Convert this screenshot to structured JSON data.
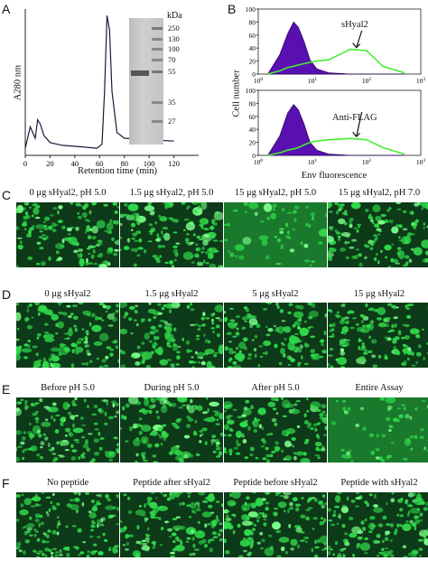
{
  "panels": {
    "A": "A",
    "B": "B",
    "C": "C",
    "D": "D",
    "E": "E",
    "F": "F"
  },
  "panel_a": {
    "ylabel": "A280 nm",
    "xlabel": "Retention time (min)",
    "xticks": [
      "0",
      "20",
      "40",
      "60",
      "80",
      "100",
      "120"
    ],
    "gel_unit": "kDa",
    "gel_markers": [
      "250",
      "130",
      "100",
      "70",
      "55",
      "35",
      "27"
    ]
  },
  "panel_b": {
    "ylabel": "Cell number",
    "xlabel": "Env fluorescence",
    "top": {
      "label": "sHyal2",
      "yticks": [
        "0",
        "20",
        "40",
        "60",
        "80",
        "100"
      ]
    },
    "bottom": {
      "label": "Anti-FLAG",
      "yticks": [
        "0",
        "20",
        "40",
        "60",
        "80",
        "100"
      ]
    },
    "xticks_exp": [
      "0",
      "1",
      "2",
      "3"
    ],
    "xtick_base": "10",
    "colors": {
      "filled": "#5a10b0",
      "line": "#44ee33"
    }
  },
  "row_c": [
    "0 μg sHyal2, pH 5.0",
    "1.5 μg sHyal2, pH 5.0",
    "15 μg sHyal2, pH 5.0",
    "15 μg sHyal2, pH 7.0"
  ],
  "row_d": [
    "0 μg sHyal2",
    "1.5 μg sHyal2",
    "5 μg sHyal2",
    "15 μg sHyal2"
  ],
  "row_e": [
    "Before pH 5.0",
    "During pH 5.0",
    "After pH 5.0",
    "Entire Assay"
  ],
  "row_f": [
    "No peptide",
    "Peptide after sHyal2",
    "Peptide before sHyal2",
    "Peptide with sHyal2"
  ],
  "micro_colors": {
    "bg": "#0d3a18",
    "cell": "#2fd94a",
    "bright": "#7dff8c"
  },
  "chart_data": [
    {
      "type": "line",
      "title": "",
      "xlabel": "Retention time (min)",
      "ylabel": "A280 nm",
      "xlim": [
        0,
        140
      ],
      "x": [
        0,
        4,
        8,
        10,
        12,
        15,
        20,
        30,
        45,
        58,
        62,
        64,
        66,
        68,
        70,
        74,
        80,
        100,
        120
      ],
      "series": [
        {
          "values": [
            0.05,
            0.2,
            0.12,
            0.25,
            0.22,
            0.14,
            0.09,
            0.07,
            0.06,
            0.05,
            0.08,
            0.45,
            0.98,
            0.88,
            0.45,
            0.16,
            0.12,
            0.11,
            0.1
          ]
        }
      ]
    },
    {
      "type": "area",
      "title": "",
      "xlabel": "Env fluorescence",
      "ylabel": "Cell number",
      "log_x": true,
      "xlim": [
        1,
        1000
      ],
      "ylim": [
        0,
        100
      ],
      "series": [
        {
          "x": [
            1.5,
            2.5,
            3.5,
            4.5,
            5.5,
            7,
            9,
            12,
            20,
            50,
            100,
            200,
            500
          ],
          "values": [
            0,
            30,
            62,
            80,
            72,
            50,
            22,
            8,
            2,
            0,
            0,
            0,
            0
          ]
        },
        {
          "name": "sHyal2",
          "x": [
            1.5,
            2.5,
            3.5,
            4.5,
            5.5,
            7,
            9,
            12,
            20,
            50,
            100,
            200,
            500
          ],
          "values": [
            0,
            5,
            10,
            12,
            14,
            16,
            18,
            20,
            22,
            38,
            36,
            12,
            2
          ]
        }
      ]
    },
    {
      "type": "area",
      "title": "",
      "xlabel": "Env fluorescence",
      "ylabel": "Cell number",
      "log_x": true,
      "xlim": [
        1,
        1000
      ],
      "ylim": [
        0,
        100
      ],
      "series": [
        {
          "x": [
            1.5,
            2.5,
            3.5,
            4.5,
            5.5,
            7,
            9,
            12,
            20,
            50,
            100,
            200,
            500
          ],
          "values": [
            0,
            30,
            65,
            78,
            70,
            48,
            20,
            8,
            2,
            0,
            0,
            0,
            0
          ]
        },
        {
          "name": "Anti-FLAG",
          "x": [
            1.5,
            2.5,
            3.5,
            4.5,
            5.5,
            7,
            9,
            12,
            20,
            50,
            100,
            200,
            500
          ],
          "values": [
            0,
            4,
            8,
            10,
            12,
            16,
            20,
            22,
            24,
            26,
            24,
            12,
            2
          ]
        }
      ]
    }
  ]
}
